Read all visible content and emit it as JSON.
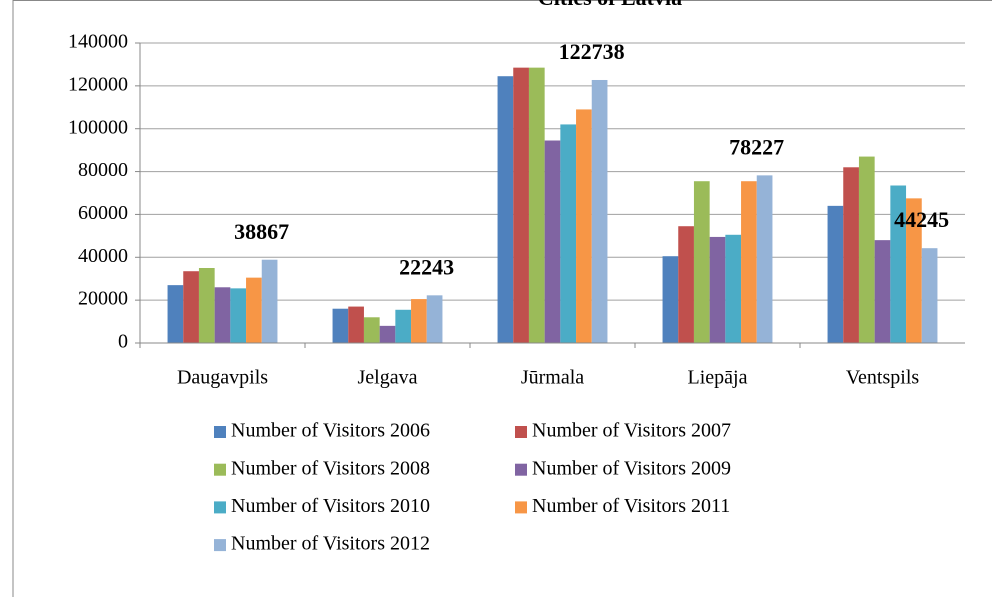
{
  "chart_data": {
    "type": "bar",
    "title": "Cities of Latvia",
    "categories": [
      "Daugavpils",
      "Jelgava",
      "Jūrmala",
      "Liepāja",
      "Ventspils"
    ],
    "series": [
      {
        "name": "Number of Visitors 2006",
        "color": "#4f81bd",
        "values": [
          27000,
          16000,
          124500,
          40500,
          64000
        ]
      },
      {
        "name": "Number of Visitors 2007",
        "color": "#c0504d",
        "values": [
          33500,
          17000,
          128500,
          54500,
          82000
        ]
      },
      {
        "name": "Number of Visitors 2008",
        "color": "#9bbb59",
        "values": [
          35000,
          12000,
          128500,
          75500,
          87000
        ]
      },
      {
        "name": "Number of Visitors 2009",
        "color": "#8064a2",
        "values": [
          26000,
          8000,
          94500,
          49500,
          48000
        ]
      },
      {
        "name": "Number of Visitors 2010",
        "color": "#4bacc6",
        "values": [
          25500,
          15500,
          102000,
          50500,
          73500
        ]
      },
      {
        "name": "Number of Visitors 2011",
        "color": "#f79646",
        "values": [
          30500,
          20500,
          109000,
          75500,
          67500
        ]
      },
      {
        "name": "Number of Visitors 2012",
        "color": "#95b3d7",
        "values": [
          38867,
          22243,
          122738,
          78227,
          44245
        ],
        "show_values": true
      }
    ],
    "ylim": [
      0,
      140000
    ],
    "yticks": [
      0,
      20000,
      40000,
      60000,
      80000,
      100000,
      120000,
      140000
    ],
    "grid": true,
    "legend": "bottom"
  }
}
